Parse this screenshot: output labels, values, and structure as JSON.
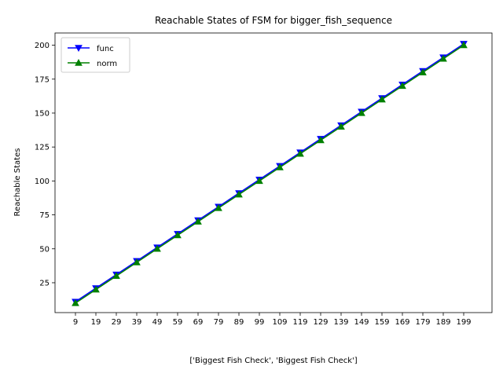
{
  "chart_data": {
    "type": "line",
    "title": "Reachable States of FSM for bigger_fish_sequence",
    "xlabel": "['Biggest Fish Check', 'Biggest Fish Check']",
    "ylabel": "Reachable States",
    "categories": [
      "9",
      "19",
      "29",
      "39",
      "49",
      "59",
      "69",
      "79",
      "89",
      "99",
      "109",
      "119",
      "129",
      "139",
      "149",
      "159",
      "169",
      "179",
      "189",
      "199"
    ],
    "ylim": [
      3,
      209
    ],
    "yticks": [
      25,
      50,
      75,
      100,
      125,
      150,
      175,
      200
    ],
    "grid": false,
    "legend_position": "upper-left",
    "series": [
      {
        "name": "func",
        "color": "#0000ff",
        "marker": "triangle-down",
        "values": [
          11,
          21,
          31,
          41,
          51,
          61,
          71,
          81,
          91,
          101,
          111,
          121,
          131,
          141,
          151,
          161,
          171,
          181,
          191,
          201
        ]
      },
      {
        "name": "norm",
        "color": "#008000",
        "marker": "triangle-up",
        "values": [
          10,
          20,
          30,
          40,
          50,
          60,
          70,
          80,
          90,
          100,
          110,
          120,
          130,
          140,
          150,
          160,
          170,
          180,
          190,
          200
        ]
      }
    ]
  }
}
